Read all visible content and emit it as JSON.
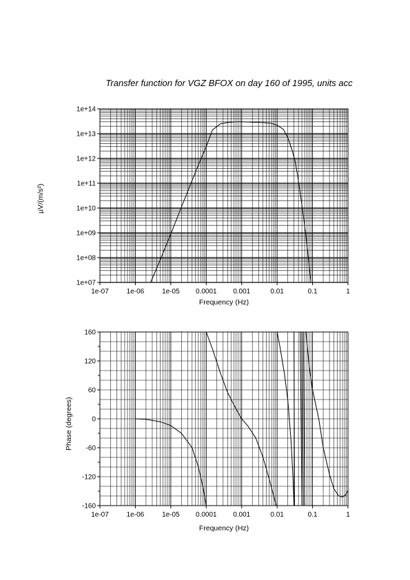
{
  "chart_data": [
    {
      "type": "line",
      "title": "Transfer function for VGZ BFOX on day 160 of 1995, units acc",
      "xlabel": "Frequency (Hz)",
      "ylabel": "µV/(m/s²)",
      "xscale": "log",
      "yscale": "log",
      "xlim": [
        1e-07,
        1
      ],
      "ylim": [
        10000000.0,
        100000000000000.0
      ],
      "xticks": [
        "1e-07",
        "1e-06",
        "1e-05",
        "0.0001",
        "0.001",
        "0.01",
        "0.1",
        "1"
      ],
      "yticks": [
        "1e+07",
        "1e+08",
        "1e+09",
        "1e+10",
        "1e+11",
        "1e+12",
        "1e+13",
        "1e+14"
      ],
      "grid": true,
      "series": [
        {
          "x": [
            2.7e-06,
            5e-06,
            1e-05,
            2e-05,
            4e-05,
            6e-05,
            0.0001,
            0.00015,
            0.00025,
            0.0004,
            0.0007,
            0.001,
            0.002,
            0.004,
            0.007,
            0.01,
            0.015,
            0.02,
            0.027,
            0.032,
            0.038,
            0.045,
            0.055,
            0.065,
            0.08,
            0.09
          ],
          "y": [
            10000000.0,
            80000000.0,
            900000000.0,
            11000000000.0,
            130000000000.0,
            550000000000.0,
            3000000000000.0,
            14000000000000.0,
            25000000000000.0,
            28000000000000.0,
            30000000000000.0,
            30000000000000.0,
            29000000000000.0,
            28000000000000.0,
            26000000000000.0,
            22000000000000.0,
            15000000000000.0,
            7000000000000.0,
            2000000000000.0,
            800000000000.0,
            200000000000.0,
            40000000000.0,
            5000000000.0,
            800000000.0,
            50000000.0,
            10000000.0
          ]
        }
      ]
    },
    {
      "type": "line",
      "xlabel": "Frequency (Hz)",
      "ylabel": "Phase (degrees)",
      "xscale": "log",
      "xlim": [
        1e-07,
        1
      ],
      "ylim": [
        -180,
        180
      ],
      "xticks": [
        "1e-07",
        "1e-06",
        "1e-05",
        "0.0001",
        "0.001",
        "0.01",
        "0.1",
        "1"
      ],
      "yticks": [
        "160",
        "120",
        "60",
        "0",
        "-60",
        "-120",
        "-160"
      ],
      "grid": true,
      "series": [
        {
          "segments": [
            {
              "x": [
                1e-06,
                2e-06,
                5e-06,
                1e-05,
                2e-05,
                4e-05,
                6e-05,
                8e-05,
                0.0001
              ],
              "y": [
                0,
                -1,
                -6,
                -14,
                -30,
                -60,
                -100,
                -140,
                -180
              ]
            },
            {
              "x": [
                0.0001,
                0.00015,
                0.00025,
                0.0004,
                0.0007,
                0.001,
                0.0015,
                0.0025,
                0.004,
                0.006,
                0.008,
                0.0095
              ],
              "y": [
                180,
                145,
                95,
                55,
                20,
                0,
                -15,
                -40,
                -80,
                -125,
                -160,
                -180
              ]
            },
            {
              "x": [
                0.01,
                0.012,
                0.016,
                0.02,
                0.025,
                0.028,
                0.03
              ],
              "y": [
                180,
                150,
                95,
                40,
                -50,
                -120,
                -180
              ]
            },
            {
              "x": [
                0.03,
                0.031
              ],
              "y": [
                180,
                -180
              ]
            },
            {
              "x": [
                0.045,
                0.05
              ],
              "y": [
                180,
                -180
              ]
            },
            {
              "x": [
                0.05,
                0.055
              ],
              "y": [
                180,
                -180
              ]
            },
            {
              "x": [
                0.055,
                0.06
              ],
              "y": [
                180,
                -180
              ]
            },
            {
              "x": [
                0.065,
                0.08,
                0.1,
                0.15,
                0.2,
                0.3,
                0.4,
                0.55,
                0.7,
                0.85,
                1.0
              ],
              "y": [
                180,
                110,
                60,
                0,
                -60,
                -115,
                -145,
                -160,
                -162,
                -158,
                -148
              ]
            }
          ]
        }
      ]
    }
  ]
}
